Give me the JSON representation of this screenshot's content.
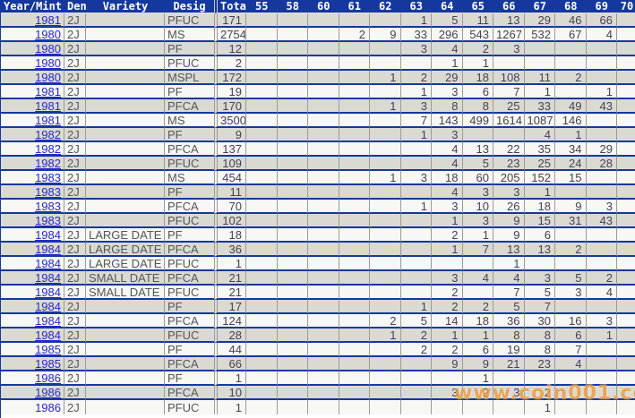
{
  "table": {
    "columns": [
      "Year/Mint",
      "Den",
      "Variety",
      "Desig",
      "Tota",
      "55",
      "58",
      "60",
      "61",
      "62",
      "63",
      "64",
      "65",
      "66",
      "67",
      "68",
      "69",
      "70"
    ],
    "grade_columns": [
      "55",
      "58",
      "60",
      "61",
      "62",
      "63",
      "64",
      "65",
      "66",
      "67",
      "68",
      "69",
      "70"
    ],
    "rows": [
      {
        "year": "1981",
        "den": "2J",
        "variety": "",
        "desig": "PFUC",
        "total": "171",
        "grades": [
          "",
          "",
          "",
          "",
          "",
          "1",
          "5",
          "11",
          "13",
          "29",
          "46",
          "66",
          ""
        ]
      },
      {
        "year": "1980",
        "den": "2J",
        "variety": "",
        "desig": "MS",
        "total": "2754",
        "grades": [
          "",
          "",
          "",
          "2",
          "9",
          "33",
          "296",
          "543",
          "1267",
          "532",
          "67",
          "4",
          ""
        ]
      },
      {
        "year": "1980",
        "den": "2J",
        "variety": "",
        "desig": "PF",
        "total": "12",
        "grades": [
          "",
          "",
          "",
          "",
          "",
          "3",
          "4",
          "2",
          "3",
          "",
          "",
          "",
          ""
        ]
      },
      {
        "year": "1980",
        "den": "2J",
        "variety": "",
        "desig": "PFUC",
        "total": "2",
        "grades": [
          "",
          "",
          "",
          "",
          "",
          "",
          "1",
          "1",
          "",
          "",
          "",
          "",
          ""
        ]
      },
      {
        "year": "1980",
        "den": "2J",
        "variety": "",
        "desig": "MSPL",
        "total": "172",
        "grades": [
          "",
          "",
          "",
          "",
          "1",
          "2",
          "29",
          "18",
          "108",
          "11",
          "2",
          "",
          ""
        ]
      },
      {
        "year": "1981",
        "den": "2J",
        "variety": "",
        "desig": "PF",
        "total": "19",
        "grades": [
          "",
          "",
          "",
          "",
          "",
          "1",
          "3",
          "6",
          "7",
          "1",
          "",
          "1",
          ""
        ]
      },
      {
        "year": "1981",
        "den": "2J",
        "variety": "",
        "desig": "PFCA",
        "total": "170",
        "grades": [
          "",
          "",
          "",
          "",
          "1",
          "3",
          "8",
          "8",
          "25",
          "33",
          "49",
          "43",
          ""
        ]
      },
      {
        "year": "1981",
        "den": "2J",
        "variety": "",
        "desig": "MS",
        "total": "3500",
        "grades": [
          "",
          "",
          "",
          "",
          "",
          "7",
          "143",
          "499",
          "1614",
          "1087",
          "146",
          "",
          ""
        ]
      },
      {
        "year": "1982",
        "den": "2J",
        "variety": "",
        "desig": "PF",
        "total": "9",
        "grades": [
          "",
          "",
          "",
          "",
          "",
          "1",
          "3",
          "",
          "",
          "4",
          "1",
          "",
          ""
        ]
      },
      {
        "year": "1982",
        "den": "2J",
        "variety": "",
        "desig": "PFCA",
        "total": "137",
        "grades": [
          "",
          "",
          "",
          "",
          "",
          "",
          "4",
          "13",
          "22",
          "35",
          "34",
          "29",
          ""
        ]
      },
      {
        "year": "1982",
        "den": "2J",
        "variety": "",
        "desig": "PFUC",
        "total": "109",
        "grades": [
          "",
          "",
          "",
          "",
          "",
          "",
          "4",
          "5",
          "23",
          "25",
          "24",
          "28",
          ""
        ]
      },
      {
        "year": "1983",
        "den": "2J",
        "variety": "",
        "desig": "MS",
        "total": "454",
        "grades": [
          "",
          "",
          "",
          "",
          "1",
          "3",
          "18",
          "60",
          "205",
          "152",
          "15",
          "",
          ""
        ]
      },
      {
        "year": "1983",
        "den": "2J",
        "variety": "",
        "desig": "PF",
        "total": "11",
        "grades": [
          "",
          "",
          "",
          "",
          "",
          "",
          "4",
          "3",
          "3",
          "1",
          "",
          "",
          ""
        ]
      },
      {
        "year": "1983",
        "den": "2J",
        "variety": "",
        "desig": "PFCA",
        "total": "70",
        "grades": [
          "",
          "",
          "",
          "",
          "",
          "1",
          "3",
          "10",
          "26",
          "18",
          "9",
          "3",
          ""
        ]
      },
      {
        "year": "1983",
        "den": "2J",
        "variety": "",
        "desig": "PFUC",
        "total": "102",
        "grades": [
          "",
          "",
          "",
          "",
          "",
          "",
          "1",
          "3",
          "9",
          "15",
          "31",
          "43",
          ""
        ]
      },
      {
        "year": "1984",
        "den": "2J",
        "variety": "LARGE DATE",
        "desig": "PF",
        "total": "18",
        "grades": [
          "",
          "",
          "",
          "",
          "",
          "",
          "2",
          "1",
          "9",
          "6",
          "",
          "",
          ""
        ]
      },
      {
        "year": "1984",
        "den": "2J",
        "variety": "LARGE DATE",
        "desig": "PFCA",
        "total": "36",
        "grades": [
          "",
          "",
          "",
          "",
          "",
          "",
          "1",
          "7",
          "13",
          "13",
          "2",
          "",
          ""
        ]
      },
      {
        "year": "1984",
        "den": "2J",
        "variety": "LARGE DATE",
        "desig": "PFUC",
        "total": "1",
        "grades": [
          "",
          "",
          "",
          "",
          "",
          "",
          "",
          "",
          "1",
          "",
          "",
          "",
          ""
        ]
      },
      {
        "year": "1984",
        "den": "2J",
        "variety": "SMALL DATE",
        "desig": "PFCA",
        "total": "21",
        "grades": [
          "",
          "",
          "",
          "",
          "",
          "",
          "3",
          "4",
          "4",
          "3",
          "5",
          "2",
          ""
        ]
      },
      {
        "year": "1984",
        "den": "2J",
        "variety": "SMALL DATE",
        "desig": "PFUC",
        "total": "21",
        "grades": [
          "",
          "",
          "",
          "",
          "",
          "",
          "2",
          "",
          "7",
          "5",
          "3",
          "4",
          ""
        ]
      },
      {
        "year": "1984",
        "den": "2J",
        "variety": "",
        "desig": "PF",
        "total": "17",
        "grades": [
          "",
          "",
          "",
          "",
          "",
          "1",
          "2",
          "2",
          "5",
          "7",
          "",
          "",
          ""
        ]
      },
      {
        "year": "1984",
        "den": "2J",
        "variety": "",
        "desig": "PFCA",
        "total": "124",
        "grades": [
          "",
          "",
          "",
          "",
          "2",
          "5",
          "14",
          "18",
          "36",
          "30",
          "16",
          "3",
          ""
        ]
      },
      {
        "year": "1984",
        "den": "2J",
        "variety": "",
        "desig": "PFUC",
        "total": "28",
        "grades": [
          "",
          "",
          "",
          "",
          "1",
          "2",
          "1",
          "1",
          "8",
          "8",
          "6",
          "1",
          ""
        ]
      },
      {
        "year": "1985",
        "den": "2J",
        "variety": "",
        "desig": "PF",
        "total": "44",
        "grades": [
          "",
          "",
          "",
          "",
          "",
          "2",
          "2",
          "6",
          "19",
          "8",
          "7",
          "",
          ""
        ]
      },
      {
        "year": "1985",
        "den": "2J",
        "variety": "",
        "desig": "PFCA",
        "total": "66",
        "grades": [
          "",
          "",
          "",
          "",
          "",
          "",
          "9",
          "9",
          "21",
          "23",
          "4",
          "",
          ""
        ]
      },
      {
        "year": "1986",
        "den": "2J",
        "variety": "",
        "desig": "PF",
        "total": "1",
        "grades": [
          "",
          "",
          "",
          "",
          "",
          "",
          "",
          "1",
          "",
          "",
          "",
          "",
          ""
        ]
      },
      {
        "year": "1986",
        "den": "2J",
        "variety": "",
        "desig": "PFCA",
        "total": "10",
        "grades": [
          "",
          "",
          "",
          "",
          "",
          "",
          "3",
          "2",
          "3",
          "2",
          "",
          "",
          ""
        ]
      },
      {
        "year": "1986",
        "den": "2J",
        "variety": "",
        "desig": "PFUC",
        "total": "1",
        "grades": [
          "",
          "",
          "",
          "",
          "",
          "",
          "",
          "",
          "",
          "1",
          "",
          "",
          ""
        ]
      }
    ]
  },
  "watermark": {
    "text": "www.coin001.com"
  },
  "colors": {
    "header_bg": "#14389E",
    "row_line": "#14389E",
    "row_odd_bg": "#DADAD2",
    "row_even_bg": "#F7F7F4",
    "grid_line": "#9B9B9B",
    "year_link": "#2828CC",
    "number_text": "#4B3E55",
    "watermark": "#ED9B3D"
  }
}
